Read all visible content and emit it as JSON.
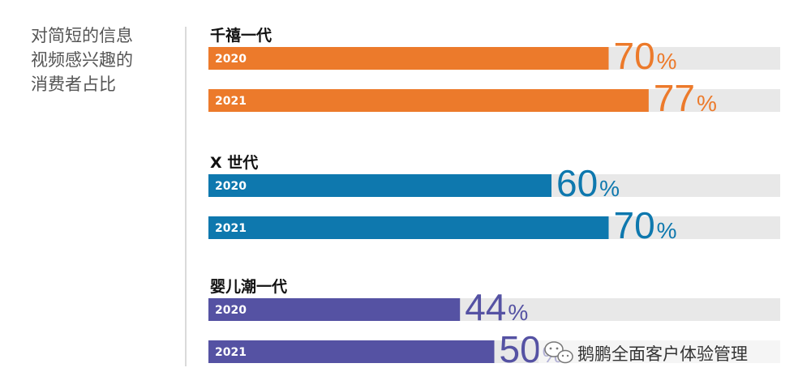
{
  "title_lines": [
    "对简短的信息",
    "视频感兴趣的",
    "消费者占比"
  ],
  "watermark": {
    "text": "鹅鹏全面客户体验管理",
    "icon": "wechat-icon"
  },
  "colors": {
    "track": "#e8e8e8",
    "divider": "#b5b5b5"
  },
  "chart_data": {
    "type": "bar",
    "orientation": "horizontal",
    "title": "对简短的信息视频感兴趣的消费者占比",
    "unit": "%",
    "xlim": [
      0,
      100
    ],
    "grid": false,
    "groups": [
      {
        "name": "千禧一代",
        "color": "#ec7a2b",
        "bars": [
          {
            "year": "2020",
            "value": 70
          },
          {
            "year": "2021",
            "value": 77
          }
        ]
      },
      {
        "name": "X 世代",
        "color": "#0e78ae",
        "bars": [
          {
            "year": "2020",
            "value": 60
          },
          {
            "year": "2021",
            "value": 70
          }
        ]
      },
      {
        "name": "婴儿潮一代",
        "color": "#5552a3",
        "bars": [
          {
            "year": "2020",
            "value": 44
          },
          {
            "year": "2021",
            "value": 50
          }
        ]
      }
    ]
  }
}
